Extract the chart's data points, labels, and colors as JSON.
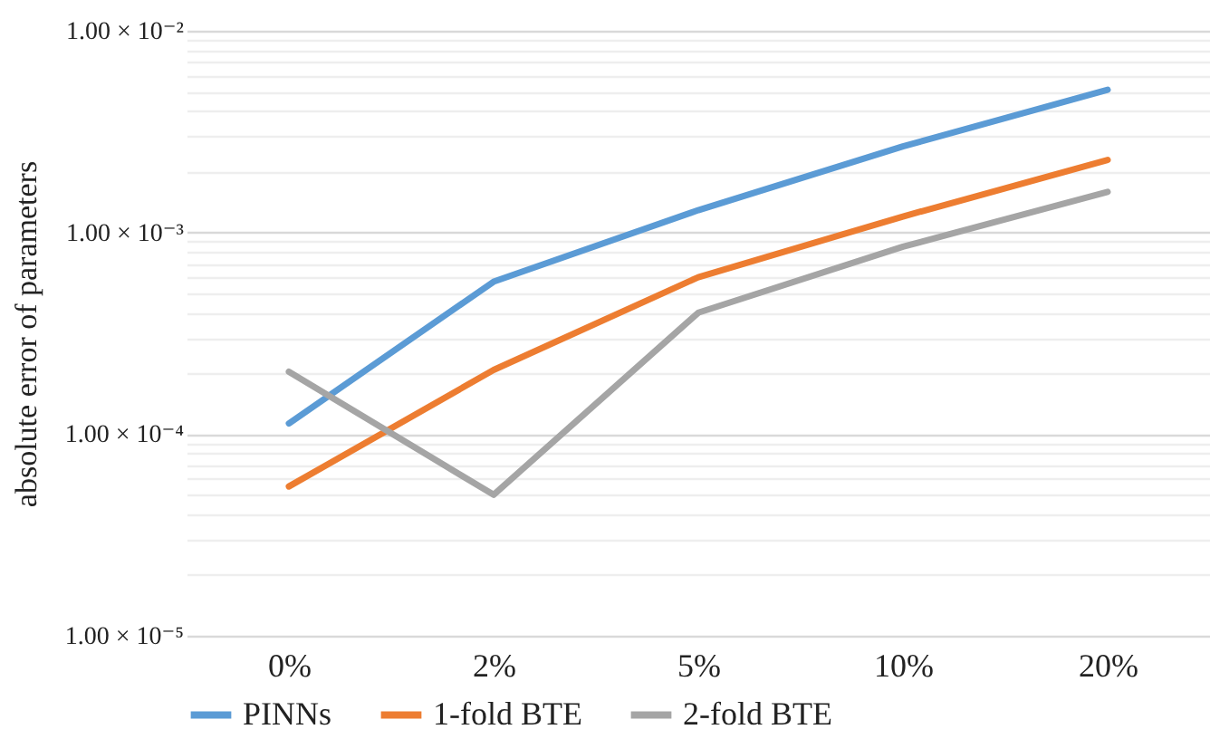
{
  "chart_data": {
    "type": "line",
    "ylabel": "absolute error of parameters",
    "categories": [
      "0%",
      "2%",
      "5%",
      "10%",
      "20%"
    ],
    "series": [
      {
        "name": "PINNs",
        "color": "#5b9bd5",
        "values": [
          0.000113,
          0.00057,
          0.00129,
          0.00267,
          0.0051
        ]
      },
      {
        "name": "1-fold BTE",
        "color": "#ed7d31",
        "values": [
          5.5e-05,
          0.000208,
          0.0006,
          0.0012,
          0.00229
        ]
      },
      {
        "name": "2-fold BTE",
        "color": "#a5a5a5",
        "values": [
          0.000204,
          5e-05,
          0.0004,
          0.00085,
          0.00159
        ]
      }
    ],
    "log": "y",
    "ylim": [
      1e-05,
      0.01
    ],
    "yticks": [
      {
        "value": 1e-05,
        "label": "1.00 × 10⁻⁵"
      },
      {
        "value": 2e-05,
        "label": null
      },
      {
        "value": 3e-05,
        "label": null
      },
      {
        "value": 4e-05,
        "label": null
      },
      {
        "value": 5e-05,
        "label": null
      },
      {
        "value": 6e-05,
        "label": null
      },
      {
        "value": 7e-05,
        "label": null
      },
      {
        "value": 8e-05,
        "label": null
      },
      {
        "value": 9e-05,
        "label": null
      },
      {
        "value": 0.0001,
        "label": "1.00 × 10⁻⁴"
      },
      {
        "value": 0.0002,
        "label": null
      },
      {
        "value": 0.0003,
        "label": null
      },
      {
        "value": 0.0004,
        "label": null
      },
      {
        "value": 0.0005,
        "label": null
      },
      {
        "value": 0.0006,
        "label": null
      },
      {
        "value": 0.0007,
        "label": null
      },
      {
        "value": 0.0008,
        "label": null
      },
      {
        "value": 0.0009,
        "label": null
      },
      {
        "value": 0.001,
        "label": "1.00 × 10⁻³"
      },
      {
        "value": 0.002,
        "label": null
      },
      {
        "value": 0.003,
        "label": null
      },
      {
        "value": 0.004,
        "label": null
      },
      {
        "value": 0.005,
        "label": null
      },
      {
        "value": 0.006,
        "label": null
      },
      {
        "value": 0.007,
        "label": null
      },
      {
        "value": 0.008,
        "label": null
      },
      {
        "value": 0.009,
        "label": null
      },
      {
        "value": 0.01,
        "label": "1.00 × 10⁻²"
      }
    ],
    "grid": "y",
    "legend": "bottom",
    "marker": "none",
    "line_style": "solid"
  }
}
